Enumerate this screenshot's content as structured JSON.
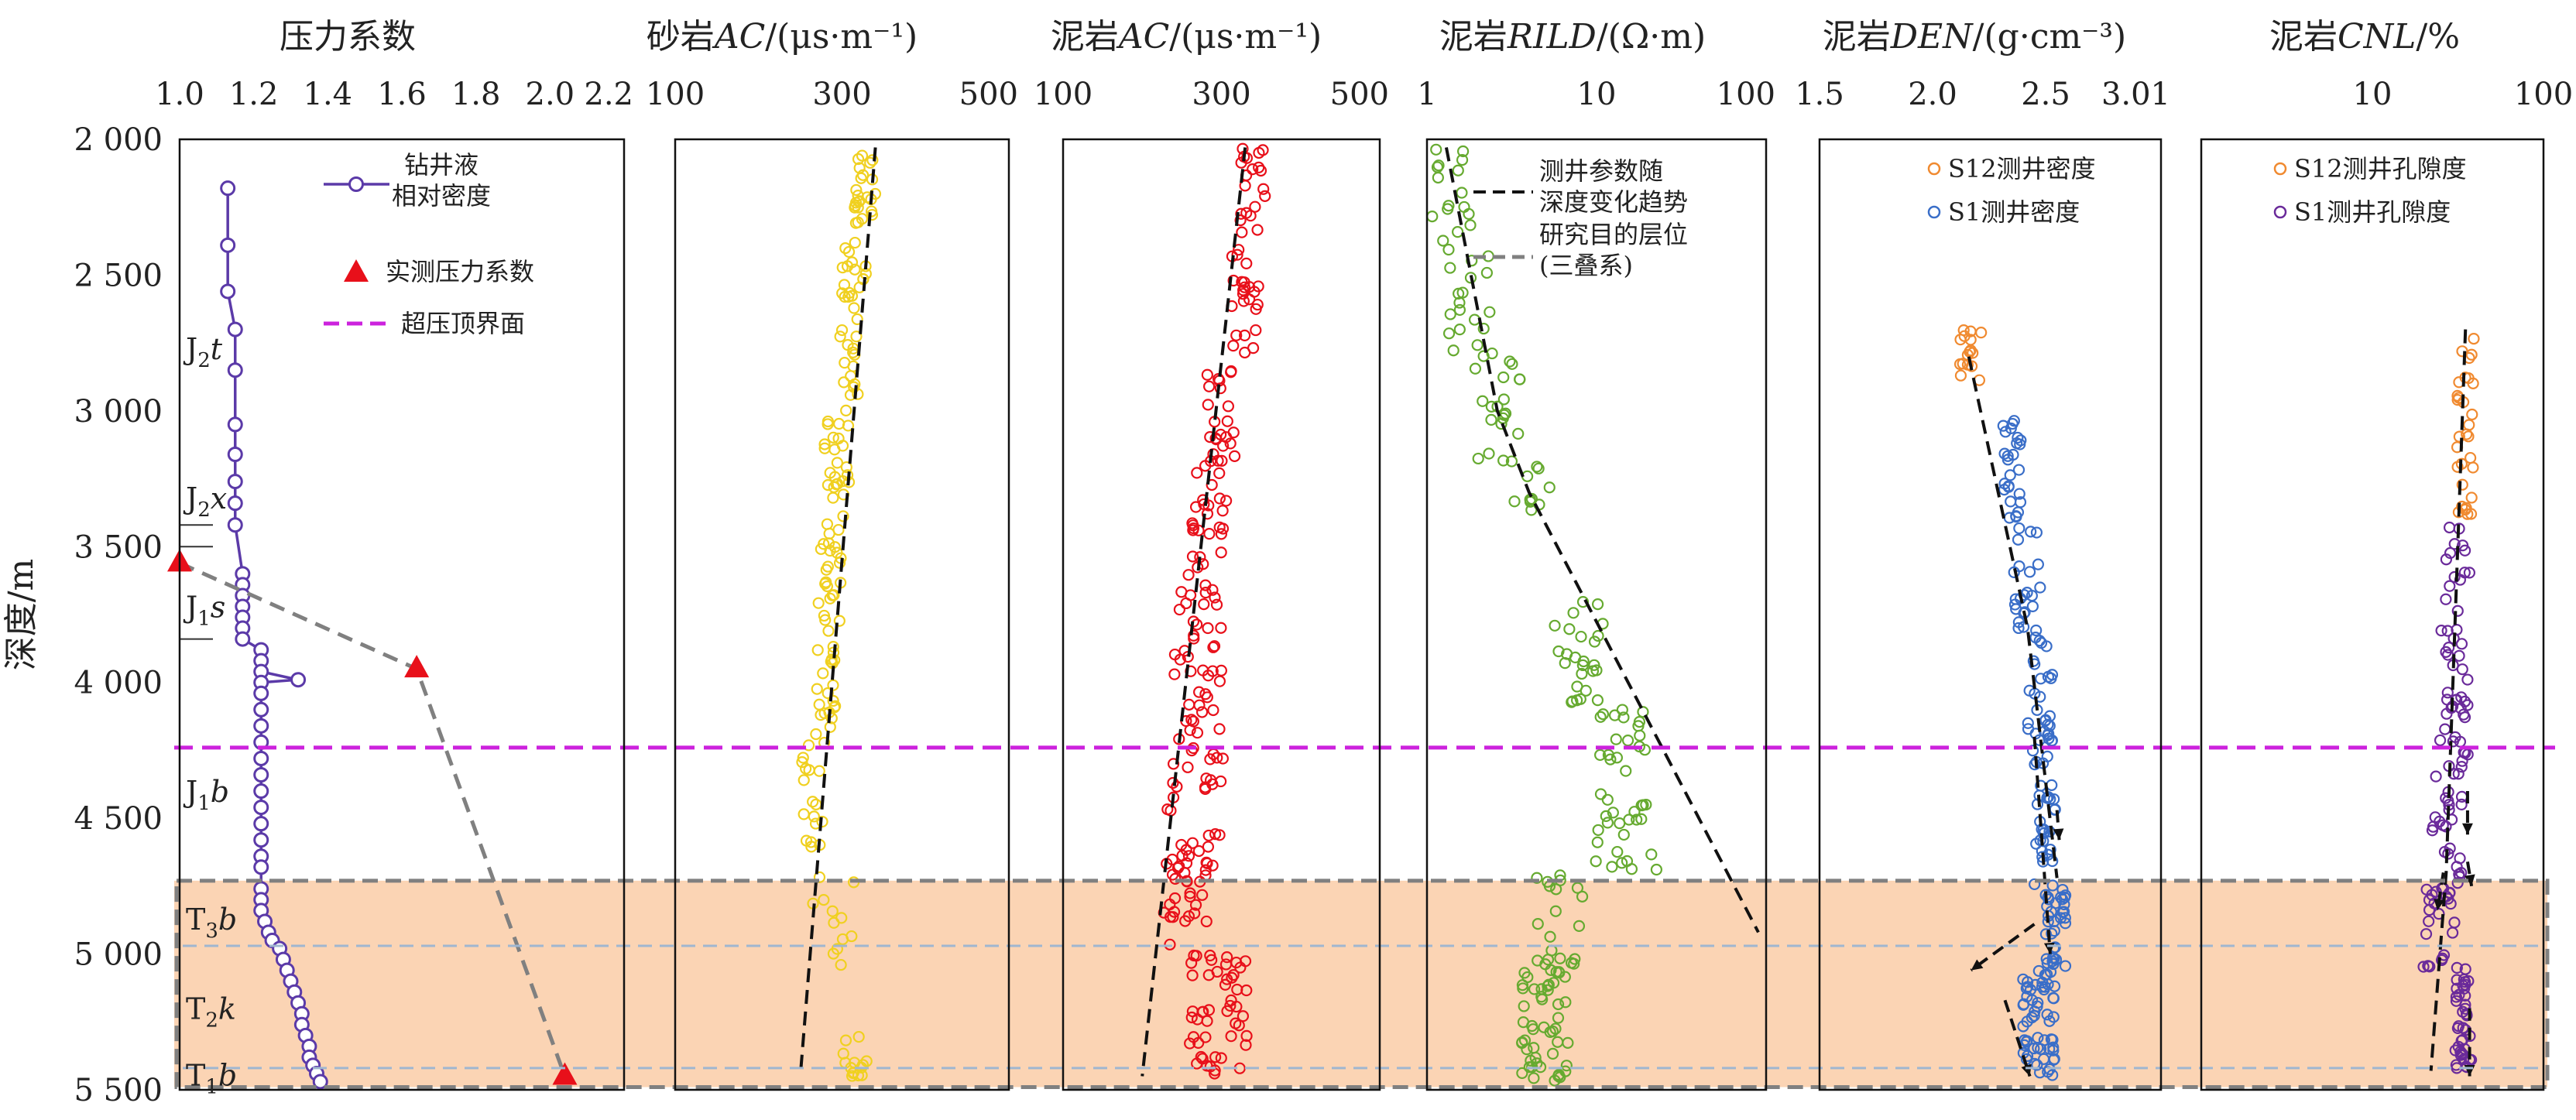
{
  "figure": {
    "ylabel": "深度/m",
    "y_ticks": [
      "2 000",
      "2 500",
      "3 000",
      "3 500",
      "4 000",
      "4 500",
      "5 000",
      "5 500"
    ],
    "overpressure_top_depth": 4240,
    "target_interval": [
      4730,
      5490
    ],
    "triassic_fill": "#fbd4b4",
    "formations": [
      {
        "label": "J2t",
        "base": "J",
        "sub": "2",
        "tail": "t",
        "depth": 2770
      },
      {
        "label": "J2x",
        "base": "J",
        "sub": "2",
        "tail": "x",
        "depth": 3320
      },
      {
        "label": "J1s",
        "base": "J",
        "sub": "1",
        "tail": "s",
        "depth": 3720
      },
      {
        "label": "J1b",
        "base": "J",
        "sub": "1",
        "tail": "b",
        "depth": 4400
      },
      {
        "label": "T3b",
        "base": "T",
        "sub": "3",
        "tail": "b",
        "depth": 4870
      },
      {
        "label": "T2k",
        "base": "T",
        "sub": "2",
        "tail": "k",
        "depth": 5200
      },
      {
        "label": "T1b",
        "base": "T",
        "sub": "1",
        "tail": "b",
        "depth": 5445
      }
    ],
    "formation_boundaries": [
      3420,
      3500,
      3840,
      4970,
      5420
    ]
  },
  "chart_data": [
    {
      "type": "line",
      "title": "压力系数",
      "x_scale": "linear",
      "xlim": [
        1.0,
        2.2
      ],
      "x_ticks": [
        "1.0",
        "1.2",
        "1.4",
        "1.6",
        "1.8",
        "2.0",
        "2.2"
      ],
      "series": [
        {
          "name": "钻井液相对密度",
          "color": "#5b3aa8",
          "points": [
            [
              1.13,
              2180
            ],
            [
              1.13,
              2390
            ],
            [
              1.13,
              2560
            ],
            [
              1.15,
              2700
            ],
            [
              1.15,
              2850
            ],
            [
              1.15,
              3050
            ],
            [
              1.15,
              3160
            ],
            [
              1.15,
              3260
            ],
            [
              1.15,
              3340
            ],
            [
              1.15,
              3420
            ],
            [
              1.17,
              3600
            ],
            [
              1.17,
              3640
            ],
            [
              1.17,
              3680
            ],
            [
              1.17,
              3720
            ],
            [
              1.17,
              3760
            ],
            [
              1.17,
              3800
            ],
            [
              1.17,
              3840
            ],
            [
              1.22,
              3880
            ],
            [
              1.22,
              3920
            ],
            [
              1.22,
              3960
            ],
            [
              1.32,
              3990
            ],
            [
              1.22,
              4000
            ],
            [
              1.22,
              4040
            ],
            [
              1.22,
              4100
            ],
            [
              1.22,
              4160
            ],
            [
              1.22,
              4220
            ],
            [
              1.22,
              4280
            ],
            [
              1.22,
              4340
            ],
            [
              1.22,
              4400
            ],
            [
              1.22,
              4460
            ],
            [
              1.22,
              4520
            ],
            [
              1.22,
              4580
            ],
            [
              1.22,
              4640
            ],
            [
              1.22,
              4680
            ],
            [
              1.22,
              4760
            ],
            [
              1.22,
              4800
            ],
            [
              1.22,
              4840
            ],
            [
              1.23,
              4880
            ],
            [
              1.24,
              4920
            ],
            [
              1.25,
              4950
            ],
            [
              1.27,
              4980
            ],
            [
              1.28,
              5020
            ],
            [
              1.29,
              5060
            ],
            [
              1.3,
              5100
            ],
            [
              1.31,
              5140
            ],
            [
              1.32,
              5180
            ],
            [
              1.33,
              5220
            ],
            [
              1.33,
              5260
            ],
            [
              1.34,
              5300
            ],
            [
              1.35,
              5340
            ],
            [
              1.35,
              5380
            ],
            [
              1.36,
              5410
            ],
            [
              1.37,
              5440
            ],
            [
              1.38,
              5470
            ]
          ]
        },
        {
          "name": "实测压力系数",
          "color": "#e8101a",
          "points": [
            [
              1.0,
              3560
            ],
            [
              1.64,
              3950
            ],
            [
              2.04,
              5450
            ]
          ]
        }
      ],
      "legend": [
        "钻井液",
        "相对密度",
        "实测压力系数",
        "超压顶界面"
      ]
    },
    {
      "type": "scatter",
      "title": "砂岩AC/(μs·m⁻¹)",
      "title_parts": [
        "砂岩",
        "AC",
        "/(μs·m⁻¹)"
      ],
      "x_scale": "linear",
      "xlim": [
        100,
        500
      ],
      "x_ticks": [
        "100",
        "300",
        "500"
      ],
      "color": "#f0d020",
      "trend": [
        [
          340,
          2030
        ],
        [
          250,
          5450
        ]
      ],
      "clusters": [
        [
          2030,
          2300,
          325,
          15,
          22
        ],
        [
          2300,
          2700,
          315,
          15,
          22
        ],
        [
          2700,
          3000,
          305,
          14,
          16
        ],
        [
          3000,
          3400,
          295,
          16,
          24
        ],
        [
          3400,
          3800,
          285,
          14,
          24
        ],
        [
          3800,
          4200,
          280,
          12,
          22
        ],
        [
          4200,
          4700,
          265,
          14,
          18
        ],
        [
          4700,
          5050,
          290,
          25,
          12
        ],
        [
          5300,
          5450,
          315,
          15,
          14
        ]
      ]
    },
    {
      "type": "scatter",
      "title": "泥岩AC/(μs·m⁻¹)",
      "title_parts": [
        "泥岩",
        "AC",
        "/(μs·m⁻¹)"
      ],
      "x_scale": "linear",
      "xlim": [
        100,
        500
      ],
      "x_ticks": [
        "100",
        "300",
        "500"
      ],
      "color": "#e8101a",
      "trend": [
        [
          330,
          2030
        ],
        [
          200,
          5450
        ]
      ],
      "clusters": [
        [
          2030,
          2400,
          340,
          18,
          20
        ],
        [
          2400,
          2800,
          330,
          18,
          24
        ],
        [
          2800,
          3200,
          300,
          18,
          24
        ],
        [
          3200,
          3600,
          285,
          22,
          26
        ],
        [
          3600,
          4000,
          270,
          30,
          30
        ],
        [
          4000,
          4400,
          270,
          35,
          30
        ],
        [
          4400,
          4700,
          265,
          35,
          22
        ],
        [
          4700,
          5000,
          255,
          30,
          22
        ],
        [
          5000,
          5450,
          300,
          40,
          50
        ]
      ]
    },
    {
      "type": "scatter",
      "title": "泥岩RILD/(Ω·m)",
      "title_parts": [
        "泥岩",
        "RILD",
        "/(Ω·m)"
      ],
      "x_scale": "log",
      "xlim": [
        1,
        100
      ],
      "x_ticks": [
        "1",
        "10",
        "100"
      ],
      "color": "#66aa30",
      "trend": [
        [
          1.3,
          2030
        ],
        [
          2.6,
          3000
        ],
        [
          4.0,
          3300
        ],
        [
          90,
          4920
        ]
      ],
      "clusters": [
        [
          2030,
          2400,
          1.4,
          0.12,
          16
        ],
        [
          2400,
          2800,
          1.8,
          0.14,
          20
        ],
        [
          2800,
          3200,
          2.6,
          0.14,
          20
        ],
        [
          3200,
          3400,
          4.2,
          0.12,
          10
        ],
        [
          3700,
          4100,
          8.0,
          0.15,
          26
        ],
        [
          4100,
          4350,
          14,
          0.15,
          18
        ],
        [
          4350,
          4700,
          15,
          0.2,
          24
        ],
        [
          4700,
          5050,
          6,
          0.15,
          20
        ],
        [
          5050,
          5490,
          5,
          0.14,
          50
        ]
      ]
    },
    {
      "type": "scatter",
      "title": "泥岩DEN/(g·cm⁻³)",
      "title_parts": [
        "泥岩",
        "DEN",
        "/(g·cm⁻³)"
      ],
      "x_scale": "linear",
      "xlim": [
        1.5,
        3.01
      ],
      "x_ticks": [
        "1.5",
        "2.0",
        "2.5",
        "3.01"
      ],
      "series": [
        {
          "name": "S12测井密度",
          "color": "#f08a30",
          "clusters": [
            [
              2700,
              2900,
              2.17,
              0.05,
              16
            ]
          ]
        },
        {
          "name": "S1测井密度",
          "color": "#3a6ec8",
          "clusters": [
            [
              3000,
              3400,
              2.35,
              0.04,
              26
            ],
            [
              3400,
              3800,
              2.42,
              0.06,
              22
            ],
            [
              3800,
              4300,
              2.48,
              0.06,
              34
            ],
            [
              4300,
              4750,
              2.5,
              0.05,
              28
            ],
            [
              4750,
              5050,
              2.55,
              0.05,
              34
            ],
            [
              5050,
              5460,
              2.47,
              0.07,
              58
            ]
          ]
        }
      ],
      "trend": [
        [
          2.16,
          2800
        ],
        [
          2.42,
          3800
        ],
        [
          2.55,
          4720
        ]
      ],
      "arrows": [
        [
          [
            2.45,
            4200
          ],
          [
            2.52,
            5000
          ]
        ],
        [
          [
            2.45,
            4890
          ],
          [
            2.17,
            5060
          ]
        ],
        [
          [
            2.32,
            5170
          ],
          [
            2.43,
            5450
          ]
        ],
        [
          [
            2.55,
            4470
          ],
          [
            2.56,
            4580
          ]
        ]
      ]
    },
    {
      "type": "scatter",
      "title": "泥岩CNL/%",
      "title_parts": [
        "泥岩",
        "CNL",
        "/%"
      ],
      "x_scale": "log",
      "xlim": [
        1,
        100
      ],
      "x_ticks": [
        "10",
        "100"
      ],
      "series": [
        {
          "name": "S12测井孔隙度",
          "color": "#f08a30",
          "clusters": [
            [
              2700,
              3400,
              35,
              0.05,
              30
            ]
          ]
        },
        {
          "name": "S1测井孔隙度",
          "color": "#6a2a9a",
          "clusters": [
            [
              3400,
              3800,
              32,
              0.08,
              14
            ],
            [
              3800,
              4300,
              30,
              0.09,
              34
            ],
            [
              4300,
              4750,
              28,
              0.1,
              28
            ],
            [
              4750,
              5050,
              24,
              0.1,
              24
            ],
            [
              5050,
              5460,
              34,
              0.05,
              40
            ]
          ]
        }
      ],
      "trend": [
        [
          35,
          2700
        ],
        [
          27,
          4700
        ],
        [
          22,
          5430
        ]
      ],
      "arrows": [
        [
          [
            36,
            4400
          ],
          [
            36,
            4560
          ]
        ],
        [
          [
            36,
            4660
          ],
          [
            38,
            4750
          ]
        ],
        [
          [
            37,
            5200
          ],
          [
            37,
            5450
          ]
        ],
        [
          [
            26,
            4700
          ],
          [
            24,
            4840
          ]
        ]
      ]
    }
  ]
}
